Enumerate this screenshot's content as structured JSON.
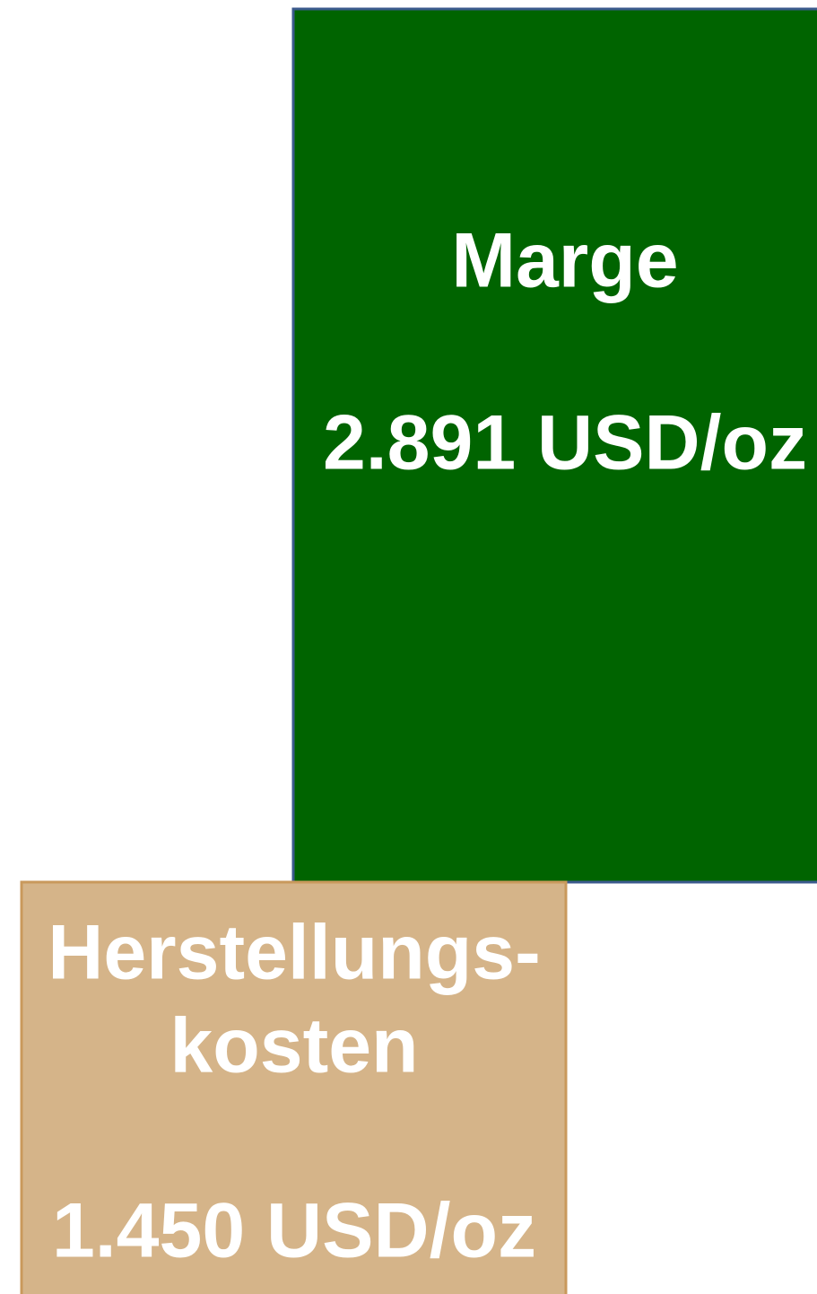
{
  "nodes": [
    {
      "label_lines": [
        "Marge"
      ],
      "value": "2.891 USD/oz"
    },
    {
      "label_lines": [
        "Herstellungs-",
        "kosten"
      ],
      "value": "1.450 USD/oz"
    }
  ]
}
